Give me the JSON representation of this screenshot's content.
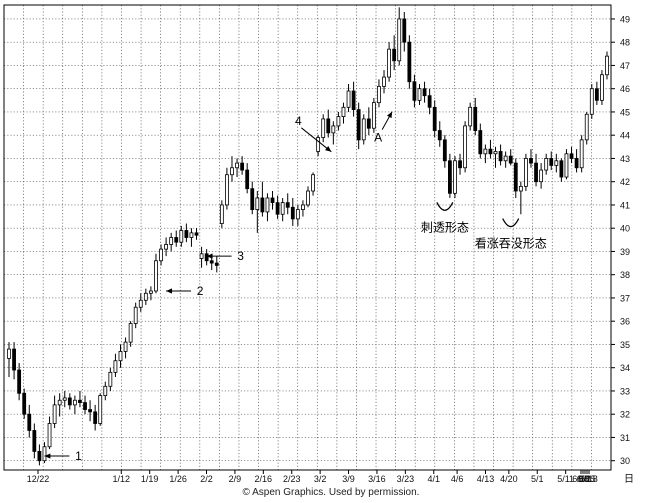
{
  "chart_data": {
    "type": "candlestick",
    "x_axis_label": "日",
    "x_ticks": [
      "12/22",
      "1/12",
      "1/19",
      "1/26",
      "2/2",
      "2/9",
      "2/16",
      "2/23",
      "3/2",
      "3/9",
      "3/16",
      "3/23",
      "4/1",
      "4/6",
      "4/13",
      "4/20",
      "5/1",
      "5/11",
      "5/18",
      "5/25",
      "6/1",
      "6/8",
      "6/15"
    ],
    "y_ticks": [
      30,
      31,
      32,
      33,
      34,
      35,
      36,
      37,
      38,
      39,
      40,
      41,
      42,
      43,
      44,
      45,
      46,
      47,
      48,
      49
    ],
    "ylim": [
      29.6,
      49.6
    ],
    "grid": true,
    "candles": [
      {
        "o": 34.4,
        "h": 35.1,
        "l": 33.6,
        "c": 34.8
      },
      {
        "o": 34.8,
        "h": 35.1,
        "l": 33.5,
        "c": 33.9
      },
      {
        "o": 33.9,
        "h": 34.2,
        "l": 32.6,
        "c": 32.9
      },
      {
        "o": 32.9,
        "h": 33.1,
        "l": 31.8,
        "c": 32.0
      },
      {
        "o": 32.0,
        "h": 32.4,
        "l": 31.0,
        "c": 31.3
      },
      {
        "o": 31.3,
        "h": 31.6,
        "l": 30.1,
        "c": 30.4
      },
      {
        "o": 30.4,
        "h": 30.7,
        "l": 29.8,
        "c": 30.0
      },
      {
        "o": 30.0,
        "h": 30.8,
        "l": 29.9,
        "c": 30.6
      },
      {
        "o": 30.6,
        "h": 31.9,
        "l": 30.5,
        "c": 31.6
      },
      {
        "o": 31.6,
        "h": 32.8,
        "l": 31.4,
        "c": 32.4
      },
      {
        "o": 32.4,
        "h": 32.9,
        "l": 31.9,
        "c": 32.6
      },
      {
        "o": 32.6,
        "h": 33.0,
        "l": 32.3,
        "c": 32.7
      },
      {
        "o": 32.7,
        "h": 32.9,
        "l": 32.2,
        "c": 32.4
      },
      {
        "o": 32.4,
        "h": 32.8,
        "l": 32.0,
        "c": 32.6
      },
      {
        "o": 32.6,
        "h": 33.0,
        "l": 32.3,
        "c": 32.5
      },
      {
        "o": 32.5,
        "h": 32.8,
        "l": 32.0,
        "c": 32.2
      },
      {
        "o": 32.2,
        "h": 32.6,
        "l": 31.7,
        "c": 32.1
      },
      {
        "o": 32.1,
        "h": 32.4,
        "l": 31.3,
        "c": 31.6
      },
      {
        "o": 31.6,
        "h": 32.9,
        "l": 31.5,
        "c": 32.8
      },
      {
        "o": 32.8,
        "h": 33.4,
        "l": 32.6,
        "c": 33.2
      },
      {
        "o": 33.2,
        "h": 34.0,
        "l": 33.0,
        "c": 33.8
      },
      {
        "o": 33.8,
        "h": 34.6,
        "l": 33.6,
        "c": 34.3
      },
      {
        "o": 34.3,
        "h": 35.0,
        "l": 34.0,
        "c": 34.7
      },
      {
        "o": 34.7,
        "h": 35.3,
        "l": 34.4,
        "c": 35.1
      },
      {
        "o": 35.1,
        "h": 36.0,
        "l": 34.9,
        "c": 35.9
      },
      {
        "o": 35.9,
        "h": 36.8,
        "l": 35.7,
        "c": 36.6
      },
      {
        "o": 36.6,
        "h": 37.2,
        "l": 36.4,
        "c": 36.9
      },
      {
        "o": 36.9,
        "h": 37.4,
        "l": 36.7,
        "c": 37.2
      },
      {
        "o": 37.2,
        "h": 37.5,
        "l": 36.9,
        "c": 37.3
      },
      {
        "o": 37.3,
        "h": 38.9,
        "l": 37.2,
        "c": 38.6
      },
      {
        "o": 38.6,
        "h": 39.3,
        "l": 38.4,
        "c": 39.1
      },
      {
        "o": 39.1,
        "h": 39.6,
        "l": 38.8,
        "c": 39.3
      },
      {
        "o": 39.3,
        "h": 39.8,
        "l": 39.0,
        "c": 39.6
      },
      {
        "o": 39.6,
        "h": 39.9,
        "l": 39.2,
        "c": 39.4
      },
      {
        "o": 39.4,
        "h": 40.1,
        "l": 39.2,
        "c": 39.9
      },
      {
        "o": 39.9,
        "h": 40.2,
        "l": 39.4,
        "c": 39.6
      },
      {
        "o": 39.6,
        "h": 40.0,
        "l": 39.2,
        "c": 39.8
      },
      {
        "o": 39.8,
        "h": 40.0,
        "l": 39.5,
        "c": 39.7
      },
      {
        "o": 38.7,
        "h": 39.2,
        "l": 38.3,
        "c": 38.9
      },
      {
        "o": 38.9,
        "h": 39.1,
        "l": 38.4,
        "c": 38.6
      },
      {
        "o": 38.6,
        "h": 38.9,
        "l": 38.2,
        "c": 38.5
      },
      {
        "o": 38.5,
        "h": 38.8,
        "l": 38.1,
        "c": 38.4
      },
      {
        "o": 40.2,
        "h": 41.2,
        "l": 40.0,
        "c": 41.0
      },
      {
        "o": 41.0,
        "h": 42.6,
        "l": 40.8,
        "c": 42.3
      },
      {
        "o": 42.3,
        "h": 43.1,
        "l": 42.0,
        "c": 42.6
      },
      {
        "o": 42.6,
        "h": 43.0,
        "l": 42.2,
        "c": 42.8
      },
      {
        "o": 42.8,
        "h": 43.1,
        "l": 42.3,
        "c": 42.5
      },
      {
        "o": 42.5,
        "h": 42.8,
        "l": 41.5,
        "c": 41.7
      },
      {
        "o": 41.7,
        "h": 42.0,
        "l": 40.6,
        "c": 40.8
      },
      {
        "o": 40.8,
        "h": 41.6,
        "l": 39.8,
        "c": 41.3
      },
      {
        "o": 41.3,
        "h": 42.0,
        "l": 40.5,
        "c": 40.7
      },
      {
        "o": 40.7,
        "h": 41.5,
        "l": 40.3,
        "c": 41.3
      },
      {
        "o": 41.3,
        "h": 41.6,
        "l": 40.8,
        "c": 41.1
      },
      {
        "o": 41.1,
        "h": 41.4,
        "l": 40.4,
        "c": 40.6
      },
      {
        "o": 40.6,
        "h": 41.3,
        "l": 40.3,
        "c": 41.1
      },
      {
        "o": 41.1,
        "h": 41.5,
        "l": 40.6,
        "c": 40.9
      },
      {
        "o": 40.9,
        "h": 41.3,
        "l": 40.1,
        "c": 40.4
      },
      {
        "o": 40.4,
        "h": 41.0,
        "l": 40.1,
        "c": 40.8
      },
      {
        "o": 40.8,
        "h": 41.2,
        "l": 40.5,
        "c": 41.0
      },
      {
        "o": 41.0,
        "h": 41.8,
        "l": 40.9,
        "c": 41.6
      },
      {
        "o": 41.6,
        "h": 42.4,
        "l": 41.4,
        "c": 42.3
      },
      {
        "o": 43.3,
        "h": 44.0,
        "l": 43.1,
        "c": 43.9
      },
      {
        "o": 43.9,
        "h": 44.9,
        "l": 43.7,
        "c": 44.7
      },
      {
        "o": 44.7,
        "h": 45.1,
        "l": 43.9,
        "c": 44.1
      },
      {
        "o": 44.1,
        "h": 44.6,
        "l": 43.6,
        "c": 44.4
      },
      {
        "o": 44.4,
        "h": 45.0,
        "l": 44.2,
        "c": 44.8
      },
      {
        "o": 44.8,
        "h": 45.4,
        "l": 44.5,
        "c": 45.2
      },
      {
        "o": 45.2,
        "h": 46.2,
        "l": 45.0,
        "c": 45.9
      },
      {
        "o": 45.9,
        "h": 46.3,
        "l": 44.8,
        "c": 45.1
      },
      {
        "o": 45.1,
        "h": 45.4,
        "l": 43.4,
        "c": 43.8
      },
      {
        "o": 43.8,
        "h": 44.9,
        "l": 43.6,
        "c": 44.7
      },
      {
        "o": 44.7,
        "h": 45.2,
        "l": 44.0,
        "c": 44.3
      },
      {
        "o": 44.3,
        "h": 45.6,
        "l": 44.1,
        "c": 45.4
      },
      {
        "o": 45.4,
        "h": 46.4,
        "l": 45.2,
        "c": 46.1
      },
      {
        "o": 46.1,
        "h": 46.8,
        "l": 45.8,
        "c": 46.5
      },
      {
        "o": 46.5,
        "h": 48.0,
        "l": 46.3,
        "c": 47.7
      },
      {
        "o": 47.7,
        "h": 48.3,
        "l": 46.8,
        "c": 47.2
      },
      {
        "o": 47.2,
        "h": 49.5,
        "l": 47.0,
        "c": 49.0
      },
      {
        "o": 49.0,
        "h": 49.3,
        "l": 47.6,
        "c": 48.0
      },
      {
        "o": 48.0,
        "h": 48.3,
        "l": 46.0,
        "c": 46.3
      },
      {
        "o": 46.3,
        "h": 46.6,
        "l": 45.2,
        "c": 45.5
      },
      {
        "o": 45.5,
        "h": 46.2,
        "l": 45.3,
        "c": 46.0
      },
      {
        "o": 46.0,
        "h": 46.3,
        "l": 45.4,
        "c": 45.7
      },
      {
        "o": 45.7,
        "h": 46.0,
        "l": 44.9,
        "c": 45.2
      },
      {
        "o": 45.2,
        "h": 45.5,
        "l": 43.9,
        "c": 44.2
      },
      {
        "o": 44.2,
        "h": 44.6,
        "l": 43.5,
        "c": 43.8
      },
      {
        "o": 43.8,
        "h": 44.0,
        "l": 42.6,
        "c": 42.9
      },
      {
        "o": 42.9,
        "h": 43.2,
        "l": 41.3,
        "c": 41.5
      },
      {
        "o": 41.5,
        "h": 43.1,
        "l": 41.3,
        "c": 42.9
      },
      {
        "o": 42.9,
        "h": 43.2,
        "l": 42.3,
        "c": 42.6
      },
      {
        "o": 42.6,
        "h": 44.6,
        "l": 42.4,
        "c": 44.4
      },
      {
        "o": 44.4,
        "h": 45.4,
        "l": 44.2,
        "c": 45.2
      },
      {
        "o": 45.2,
        "h": 45.6,
        "l": 44.0,
        "c": 44.2
      },
      {
        "o": 44.2,
        "h": 44.5,
        "l": 43.0,
        "c": 43.2
      },
      {
        "o": 43.2,
        "h": 43.6,
        "l": 42.8,
        "c": 43.4
      },
      {
        "o": 43.4,
        "h": 43.8,
        "l": 43.0,
        "c": 43.2
      },
      {
        "o": 43.2,
        "h": 43.5,
        "l": 42.6,
        "c": 43.3
      },
      {
        "o": 43.3,
        "h": 43.6,
        "l": 42.7,
        "c": 42.9
      },
      {
        "o": 42.9,
        "h": 43.3,
        "l": 42.6,
        "c": 43.1
      },
      {
        "o": 43.1,
        "h": 43.4,
        "l": 42.7,
        "c": 42.8
      },
      {
        "o": 42.8,
        "h": 43.0,
        "l": 41.3,
        "c": 41.6
      },
      {
        "o": 41.6,
        "h": 42.0,
        "l": 40.6,
        "c": 41.8
      },
      {
        "o": 41.8,
        "h": 43.2,
        "l": 41.6,
        "c": 43.0
      },
      {
        "o": 43.0,
        "h": 43.4,
        "l": 42.6,
        "c": 42.8
      },
      {
        "o": 42.8,
        "h": 43.2,
        "l": 41.8,
        "c": 42.0
      },
      {
        "o": 42.0,
        "h": 42.8,
        "l": 41.7,
        "c": 42.5
      },
      {
        "o": 42.5,
        "h": 43.2,
        "l": 42.3,
        "c": 43.0
      },
      {
        "o": 43.0,
        "h": 43.3,
        "l": 42.5,
        "c": 42.7
      },
      {
        "o": 42.7,
        "h": 43.2,
        "l": 42.4,
        "c": 42.9
      },
      {
        "o": 42.9,
        "h": 43.0,
        "l": 42.0,
        "c": 42.2
      },
      {
        "o": 42.2,
        "h": 43.4,
        "l": 42.1,
        "c": 43.2
      },
      {
        "o": 43.2,
        "h": 43.5,
        "l": 42.8,
        "c": 43.0
      },
      {
        "o": 43.0,
        "h": 43.4,
        "l": 42.4,
        "c": 42.6
      },
      {
        "o": 42.6,
        "h": 44.0,
        "l": 42.4,
        "c": 43.8
      },
      {
        "o": 43.8,
        "h": 45.0,
        "l": 43.6,
        "c": 44.9
      },
      {
        "o": 44.9,
        "h": 46.2,
        "l": 44.7,
        "c": 46.0
      },
      {
        "o": 46.0,
        "h": 46.3,
        "l": 45.3,
        "c": 45.5
      },
      {
        "o": 45.5,
        "h": 46.8,
        "l": 45.3,
        "c": 46.6
      },
      {
        "o": 46.6,
        "h": 47.6,
        "l": 46.4,
        "c": 47.4
      }
    ],
    "annotations": [
      {
        "text": "1",
        "candle": 6,
        "price": 30.2,
        "kind": "arrow-left"
      },
      {
        "text": "2",
        "candle": 30,
        "price": 37.3,
        "kind": "arrow-left"
      },
      {
        "text": "3",
        "candle": 38,
        "price": 38.8,
        "kind": "arrow-left"
      },
      {
        "text": "4",
        "candle": 64,
        "price": 43.2,
        "kind": "arrow-down"
      },
      {
        "text": "A",
        "candle": 76,
        "price": 45.1,
        "kind": "arrow-up"
      },
      {
        "text": "刺透形态",
        "candle": 86,
        "price": 41.2,
        "kind": "cup"
      },
      {
        "text": "看涨吞没形态",
        "candle": 99,
        "price": 40.5,
        "kind": "cup"
      }
    ]
  },
  "credit": "© Aspen Graphics. Used by permission."
}
